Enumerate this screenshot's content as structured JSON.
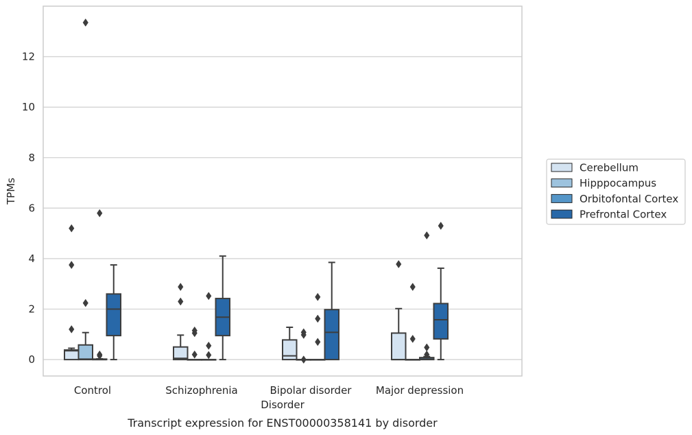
{
  "chart_data": {
    "type": "box",
    "title": "",
    "caption": "Transcript expression for ENST00000358141 by disorder",
    "xlabel": "Disorder",
    "ylabel": "TPMs",
    "ylim": [
      -0.65,
      14.0
    ],
    "yticks": [
      0,
      2,
      4,
      6,
      8,
      10,
      12
    ],
    "grid": true,
    "legend_position": "right",
    "categories": [
      "Control",
      "Schizophrenia",
      "Bipolar disorder",
      "Major depression"
    ],
    "series": [
      {
        "name": "Cerebellum",
        "color": "#d4e3f1",
        "boxes": [
          {
            "whisker_low": 0,
            "q1": 0,
            "median": 0.35,
            "q3": 0.38,
            "whisker_high": 0.45,
            "outliers": [
              1.2,
              3.75,
              5.2
            ]
          },
          {
            "whisker_low": 0,
            "q1": 0,
            "median": 0.05,
            "q3": 0.5,
            "whisker_high": 0.97,
            "outliers": [
              2.3,
              2.88
            ]
          },
          {
            "whisker_low": 0,
            "q1": 0,
            "median": 0.15,
            "q3": 0.78,
            "whisker_high": 1.28,
            "outliers": []
          },
          {
            "whisker_low": 0,
            "q1": 0,
            "median": 0.0,
            "q3": 1.05,
            "whisker_high": 2.02,
            "outliers": [
              3.78
            ]
          }
        ]
      },
      {
        "name": "Hipppocampus",
        "color": "#9dc3de",
        "boxes": [
          {
            "whisker_low": 0,
            "q1": 0,
            "median": 0.02,
            "q3": 0.58,
            "whisker_high": 1.07,
            "outliers": [
              2.24,
              13.35
            ]
          },
          {
            "whisker_low": 0,
            "q1": 0,
            "median": 0.0,
            "q3": 0.0,
            "whisker_high": 0.0,
            "outliers": [
              0.2,
              1.05,
              1.15
            ]
          },
          {
            "whisker_low": 0,
            "q1": 0,
            "median": 0.0,
            "q3": 0.0,
            "whisker_high": 0.0,
            "outliers": [
              0.0,
              0.98,
              1.08
            ]
          },
          {
            "whisker_low": 0,
            "q1": 0,
            "median": 0.0,
            "q3": 0.0,
            "whisker_high": 0.0,
            "outliers": [
              0.82,
              2.88
            ]
          }
        ]
      },
      {
        "name": "Orbitofontal Cortex",
        "color": "#5596c8",
        "boxes": [
          {
            "whisker_low": 0,
            "q1": 0,
            "median": 0.0,
            "q3": 0.02,
            "whisker_high": 0.03,
            "outliers": [
              0.15,
              0.2,
              5.8
            ]
          },
          {
            "whisker_low": 0,
            "q1": 0,
            "median": 0.0,
            "q3": 0.0,
            "whisker_high": 0.0,
            "outliers": [
              0.18,
              0.55,
              2.52
            ]
          },
          {
            "whisker_low": 0,
            "q1": 0,
            "median": 0.0,
            "q3": 0.0,
            "whisker_high": 0.0,
            "outliers": [
              0.7,
              1.62,
              2.48
            ]
          },
          {
            "whisker_low": 0,
            "q1": 0,
            "median": 0.02,
            "q3": 0.08,
            "whisker_high": 0.12,
            "outliers": [
              0.2,
              0.48,
              4.92
            ]
          }
        ]
      },
      {
        "name": "Prefrontal Cortex",
        "color": "#2868a8",
        "boxes": [
          {
            "whisker_low": 0,
            "q1": 0.95,
            "median": 2.0,
            "q3": 2.6,
            "whisker_high": 3.75,
            "outliers": []
          },
          {
            "whisker_low": 0,
            "q1": 0.95,
            "median": 1.68,
            "q3": 2.42,
            "whisker_high": 4.1,
            "outliers": []
          },
          {
            "whisker_low": 0,
            "q1": 0,
            "median": 1.08,
            "q3": 1.98,
            "whisker_high": 3.85,
            "outliers": []
          },
          {
            "whisker_low": 0,
            "q1": 0.82,
            "median": 1.58,
            "q3": 2.22,
            "whisker_high": 3.62,
            "outliers": [
              5.3
            ]
          }
        ]
      }
    ]
  }
}
